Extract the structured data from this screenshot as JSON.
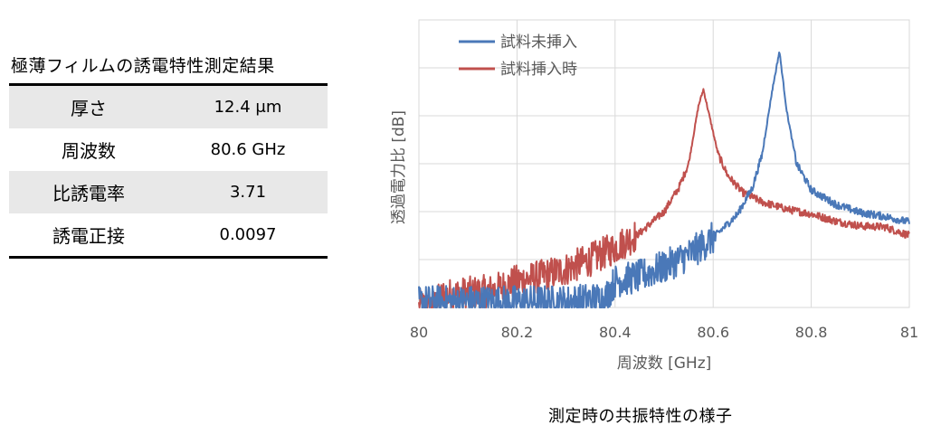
{
  "table": {
    "title": "極薄フィルムの誘電特性測定結果",
    "rows": [
      {
        "label": "厚さ",
        "value": "12.4 μm"
      },
      {
        "label": "周波数",
        "value": "80.6 GHz"
      },
      {
        "label": "比誘電率",
        "value": "3.71"
      },
      {
        "label": "誘電正接",
        "value": "0.0097"
      }
    ]
  },
  "caption": "測定時の共振特性の様子",
  "chart_data": {
    "type": "line",
    "xlabel": "周波数 [GHz]",
    "ylabel": "透過電力比 [dB]",
    "xlim": [
      80,
      81
    ],
    "x_ticks": [
      "80",
      "80.2",
      "80.4",
      "80.6",
      "80.8",
      "81"
    ],
    "ylim": [
      0,
      6
    ],
    "y_tick_labels_shown": false,
    "grid": true,
    "legend_position": "top-left",
    "series": [
      {
        "name": "試料未挿入",
        "color": "#4a78b8",
        "peak_x": 80.735,
        "points": [
          [
            80.0,
            0.12
          ],
          [
            80.1,
            0.12
          ],
          [
            80.2,
            0.12
          ],
          [
            80.3,
            0.12
          ],
          [
            80.38,
            0.2
          ],
          [
            80.4,
            0.55
          ],
          [
            80.45,
            0.65
          ],
          [
            80.5,
            0.85
          ],
          [
            80.55,
            1.1
          ],
          [
            80.6,
            1.45
          ],
          [
            80.65,
            1.95
          ],
          [
            80.68,
            2.5
          ],
          [
            80.7,
            3.2
          ],
          [
            80.72,
            4.5
          ],
          [
            80.735,
            5.35
          ],
          [
            80.75,
            4.1
          ],
          [
            80.77,
            3.0
          ],
          [
            80.8,
            2.45
          ],
          [
            80.85,
            2.15
          ],
          [
            80.9,
            1.98
          ],
          [
            80.95,
            1.9
          ],
          [
            81.0,
            1.78
          ]
        ]
      },
      {
        "name": "試料挿入時",
        "color": "#c0504d",
        "peak_x": 80.58,
        "points": [
          [
            80.0,
            0.0
          ],
          [
            80.03,
            0.05
          ],
          [
            80.05,
            0.25
          ],
          [
            80.1,
            0.3
          ],
          [
            80.15,
            0.35
          ],
          [
            80.2,
            0.55
          ],
          [
            80.25,
            0.65
          ],
          [
            80.3,
            0.8
          ],
          [
            80.35,
            1.0
          ],
          [
            80.4,
            1.25
          ],
          [
            80.45,
            1.55
          ],
          [
            80.5,
            2.0
          ],
          [
            80.53,
            2.5
          ],
          [
            80.55,
            3.0
          ],
          [
            80.57,
            4.2
          ],
          [
            80.58,
            4.55
          ],
          [
            80.59,
            4.1
          ],
          [
            80.61,
            3.2
          ],
          [
            80.63,
            2.75
          ],
          [
            80.66,
            2.4
          ],
          [
            80.7,
            2.2
          ],
          [
            80.75,
            2.05
          ],
          [
            80.8,
            1.95
          ],
          [
            80.85,
            1.8
          ],
          [
            80.9,
            1.7
          ],
          [
            80.95,
            1.68
          ],
          [
            81.0,
            1.5
          ]
        ]
      }
    ]
  }
}
